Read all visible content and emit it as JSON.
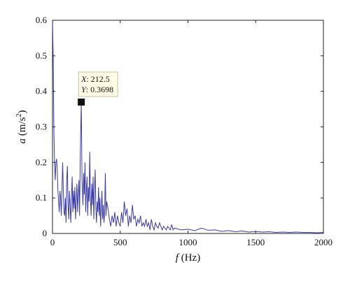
{
  "chart_data": {
    "type": "line",
    "xlabel": {
      "var": "f",
      "unit": "(Hz)"
    },
    "ylabel": {
      "var": "a",
      "unit": "(m/s",
      "sup": "2",
      "close": ")"
    },
    "xlim": [
      0,
      2000
    ],
    "ylim": [
      0,
      0.6
    ],
    "xticks": [
      0,
      500,
      1000,
      1500,
      2000
    ],
    "yticks": [
      0,
      0.1,
      0.2,
      0.3,
      0.4,
      0.5,
      0.6
    ],
    "ytick_labels": [
      "0",
      "0.1",
      "0.2",
      "0.3",
      "0.4",
      "0.5",
      "0.6"
    ],
    "grid": false,
    "line_color": "#3a3aa8",
    "series": [
      {
        "x": [
          0,
          5,
          10,
          15,
          20,
          25,
          30,
          35,
          40,
          45,
          50,
          55,
          60,
          65,
          70,
          75,
          80,
          85,
          90,
          95,
          100,
          105,
          110,
          115,
          120,
          125,
          130,
          135,
          140,
          145,
          150,
          155,
          160,
          165,
          170,
          175,
          180,
          185,
          190,
          195,
          200,
          205,
          212.5,
          218,
          225,
          230,
          235,
          240,
          245,
          250,
          255,
          260,
          265,
          270,
          275,
          280,
          285,
          290,
          295,
          300,
          305,
          310,
          315,
          320,
          325,
          330,
          335,
          340,
          345,
          350,
          355,
          360,
          365,
          370,
          375,
          380,
          385,
          390,
          395,
          400,
          410,
          420,
          430,
          440,
          450,
          460,
          470,
          480,
          490,
          500,
          510,
          520,
          530,
          540,
          550,
          560,
          570,
          580,
          590,
          600,
          610,
          620,
          630,
          640,
          650,
          660,
          670,
          680,
          690,
          700,
          710,
          720,
          730,
          740,
          750,
          760,
          770,
          780,
          790,
          800,
          810,
          820,
          830,
          840,
          850,
          860,
          870,
          880,
          890,
          900,
          950,
          1000,
          1050,
          1100,
          1150,
          1200,
          1250,
          1300,
          1350,
          1400,
          1450,
          1500,
          1550,
          1600,
          1650,
          1700,
          1750,
          1800,
          1850,
          1900,
          1950,
          2000
        ],
        "y": [
          0.6,
          0.5,
          0.3,
          0.2,
          0.15,
          0.2,
          0.21,
          0.18,
          0.12,
          0.09,
          0.06,
          0.12,
          0.1,
          0.05,
          0.13,
          0.2,
          0.12,
          0.06,
          0.05,
          0.1,
          0.03,
          0.15,
          0.19,
          0.08,
          0.04,
          0.12,
          0.08,
          0.03,
          0.1,
          0.16,
          0.06,
          0.12,
          0.07,
          0.13,
          0.04,
          0.09,
          0.14,
          0.06,
          0.11,
          0.15,
          0.05,
          0.22,
          0.3698,
          0.15,
          0.08,
          0.17,
          0.11,
          0.2,
          0.06,
          0.12,
          0.16,
          0.05,
          0.13,
          0.09,
          0.23,
          0.1,
          0.05,
          0.14,
          0.08,
          0.16,
          0.04,
          0.12,
          0.18,
          0.07,
          0.03,
          0.09,
          0.06,
          0.13,
          0.05,
          0.1,
          0.02,
          0.07,
          0.12,
          0.04,
          0.08,
          0.03,
          0.06,
          0.17,
          0.05,
          0.09,
          0.07,
          0.04,
          0.02,
          0.05,
          0.03,
          0.06,
          0.02,
          0.05,
          0.03,
          0.02,
          0.06,
          0.03,
          0.09,
          0.05,
          0.07,
          0.02,
          0.05,
          0.03,
          0.08,
          0.04,
          0.05,
          0.02,
          0.04,
          0.03,
          0.05,
          0.02,
          0.03,
          0.02,
          0.04,
          0.02,
          0.03,
          0.01,
          0.04,
          0.02,
          0.01,
          0.03,
          0.02,
          0.015,
          0.03,
          0.02,
          0.01,
          0.02,
          0.015,
          0.01,
          0.02,
          0.015,
          0.01,
          0.025,
          0.01,
          0.015,
          0.01,
          0.012,
          0.008,
          0.015,
          0.009,
          0.01,
          0.006,
          0.008,
          0.005,
          0.007,
          0.004,
          0.006,
          0.004,
          0.005,
          0.003,
          0.004,
          0.003,
          0.004,
          0.003,
          0.003,
          0.002,
          0.003
        ]
      }
    ],
    "annotation": {
      "x": 212.5,
      "y": 0.3698,
      "x_label": "X",
      "x_text": ": 212.5",
      "y_label": "Y",
      "y_text": ": 0.3698"
    }
  }
}
